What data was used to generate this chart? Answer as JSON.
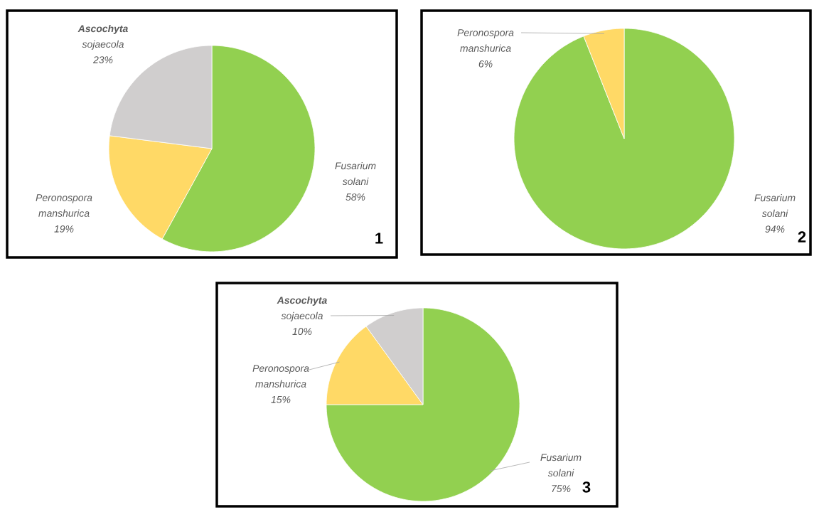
{
  "chart_data": [
    {
      "type": "pie",
      "categories": [
        "Fusarium solani",
        "Peronospora manshurica",
        "**Ascochyta** sojaecola"
      ],
      "values": [
        58,
        19,
        23
      ],
      "colors": [
        "#92d050",
        "#ffd966",
        "#d0cece"
      ],
      "value_labels": [
        "58%",
        "19%",
        "23%"
      ],
      "annotations": [
        "1"
      ]
    },
    {
      "type": "pie",
      "categories": [
        "Fusarium solani",
        "Peronospora manshurica"
      ],
      "values": [
        94,
        6
      ],
      "colors": [
        "#92d050",
        "#ffd966"
      ],
      "value_labels": [
        "94%",
        "6%"
      ],
      "annotations": [
        "2"
      ]
    },
    {
      "type": "pie",
      "categories": [
        "Fusarium solani",
        "Peronospora manshurica",
        "**Ascochyta** sojaecola"
      ],
      "values": [
        75,
        15,
        10
      ],
      "colors": [
        "#92d050",
        "#ffd966",
        "#d0cece"
      ],
      "value_labels": [
        "75%",
        "15%",
        "10%"
      ],
      "annotations": [
        "3"
      ]
    }
  ]
}
